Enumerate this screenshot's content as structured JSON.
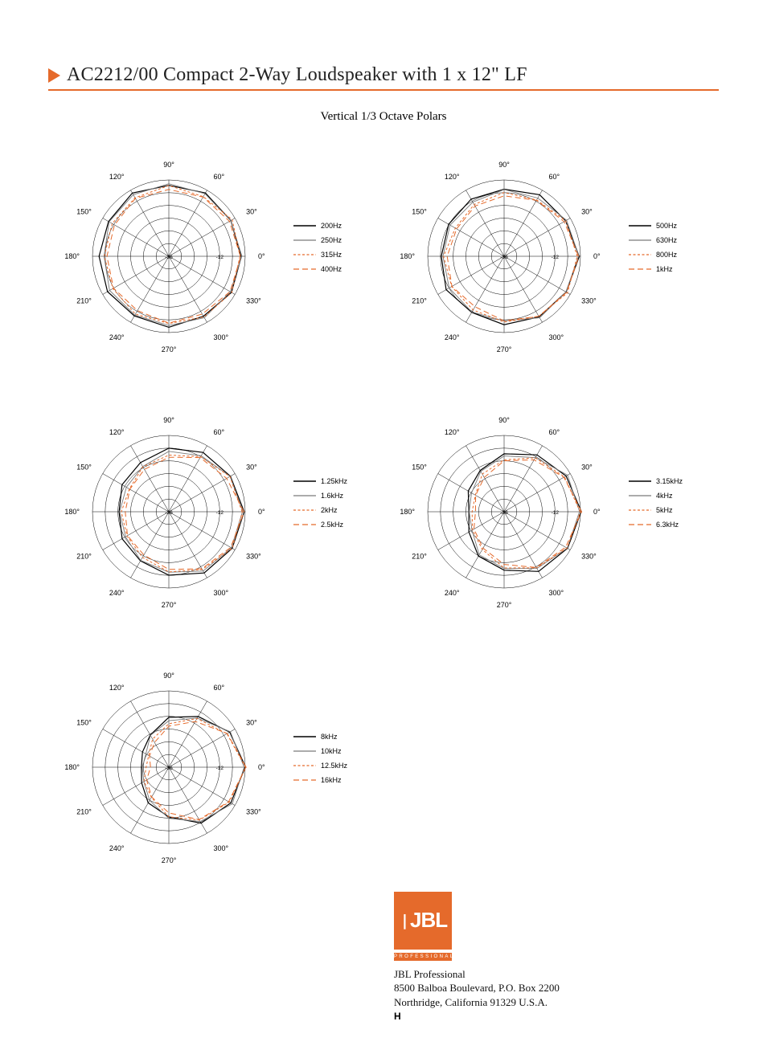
{
  "title": "AC2212/00 Compact 2-Way Loudspeaker with 1 x 12\" LF",
  "subtitle": "Vertical 1/3 Octave Polars",
  "colors": {
    "accent": "#e56a2b",
    "series1": "#000000",
    "series2": "#7a7a7a",
    "series3": "#e56a2b",
    "series4": "#e56a2b",
    "grid": "#000000",
    "bg": "#ffffff"
  },
  "polar": {
    "angle_labels": [
      "0°",
      "30°",
      "60°",
      "90°",
      "120°",
      "150°",
      "180°",
      "210°",
      "240°",
      "270°",
      "300°",
      "330°"
    ],
    "ring_values": [
      -36,
      -30,
      -24,
      -18,
      -12,
      -6,
      0
    ],
    "ring_labels_shown": [
      "-36",
      "-12"
    ],
    "r_outer": 95,
    "label_fontsize": 9,
    "ring_fontsize": 6.5
  },
  "line_styles": [
    {
      "color": "#000000",
      "dash": "",
      "width": 1.2
    },
    {
      "color": "#7a7a7a",
      "dash": "",
      "width": 0.9
    },
    {
      "color": "#e56a2b",
      "dash": "3,2.5",
      "width": 1.0
    },
    {
      "color": "#e56a2b",
      "dash": "7,4",
      "width": 1.0
    }
  ],
  "charts": [
    {
      "legend": [
        "200Hz",
        "250Hz",
        "315Hz",
        "400Hz"
      ],
      "series": [
        [
          -2,
          -2,
          -2,
          -2,
          -2,
          -3,
          -3,
          -3,
          -3,
          -3,
          -3,
          -2
        ],
        [
          -2,
          -2,
          -2,
          -2,
          -2,
          -4,
          -5,
          -4,
          -4,
          -3,
          -3,
          -2
        ],
        [
          -2,
          -2,
          -3,
          -3,
          -4,
          -5,
          -6,
          -5,
          -5,
          -4,
          -3,
          -2
        ],
        [
          -2,
          -3,
          -4,
          -4,
          -5,
          -6,
          -7,
          -6,
          -6,
          -5,
          -4,
          -3
        ]
      ]
    },
    {
      "legend": [
        "500Hz",
        "630Hz",
        "800Hz",
        "1kHz"
      ],
      "series": [
        [
          -1,
          -2,
          -3,
          -4,
          -5,
          -6,
          -6,
          -5,
          -5,
          -4,
          -3,
          -2
        ],
        [
          -1,
          -2,
          -4,
          -5,
          -6,
          -7,
          -7,
          -6,
          -6,
          -5,
          -3,
          -2
        ],
        [
          -1,
          -3,
          -5,
          -6,
          -8,
          -9,
          -8,
          -7,
          -7,
          -5,
          -3,
          -2
        ],
        [
          -1,
          -3,
          -6,
          -7,
          -9,
          -10,
          -9,
          -8,
          -8,
          -6,
          -3,
          -2
        ]
      ]
    },
    {
      "legend": [
        "1.25kHz",
        "1.6kHz",
        "2kHz",
        "2.5kHz"
      ],
      "series": [
        [
          -1,
          -2,
          -4,
          -6,
          -9,
          -11,
          -12,
          -11,
          -9,
          -6,
          -3,
          -1
        ],
        [
          -1,
          -3,
          -5,
          -8,
          -11,
          -13,
          -13,
          -12,
          -10,
          -7,
          -4,
          -2
        ],
        [
          -1,
          -3,
          -6,
          -9,
          -12,
          -14,
          -14,
          -13,
          -11,
          -8,
          -4,
          -2
        ],
        [
          -1,
          -4,
          -7,
          -10,
          -13,
          -15,
          -15,
          -14,
          -12,
          -9,
          -5,
          -2
        ]
      ]
    },
    {
      "legend": [
        "3.15kHz",
        "4kHz",
        "5kHz",
        "6.3kHz"
      ],
      "series": [
        [
          0,
          -2,
          -5,
          -9,
          -13,
          -17,
          -19,
          -17,
          -12,
          -8,
          -4,
          -1
        ],
        [
          0,
          -2,
          -6,
          -10,
          -14,
          -18,
          -20,
          -18,
          -13,
          -9,
          -5,
          -2
        ],
        [
          0,
          -3,
          -7,
          -11,
          -16,
          -20,
          -21,
          -19,
          -15,
          -10,
          -5,
          -2
        ],
        [
          0,
          -3,
          -8,
          -12,
          -17,
          -21,
          -22,
          -20,
          -16,
          -11,
          -6,
          -2
        ]
      ]
    },
    {
      "legend": [
        "8kHz",
        "10kHz",
        "12.5kHz",
        "16kHz"
      ],
      "series": [
        [
          0,
          -3,
          -8,
          -13,
          -18,
          -22,
          -23,
          -21,
          -17,
          -12,
          -6,
          -2
        ],
        [
          0,
          -3,
          -9,
          -14,
          -19,
          -23,
          -24,
          -22,
          -18,
          -12,
          -6,
          -2
        ],
        [
          0,
          -4,
          -10,
          -15,
          -21,
          -25,
          -25,
          -23,
          -19,
          -13,
          -7,
          -3
        ],
        [
          0,
          -4,
          -11,
          -17,
          -22,
          -26,
          -27,
          -24,
          -20,
          -14,
          -8,
          -3
        ]
      ]
    }
  ],
  "footer": {
    "brand": "JBL",
    "professional": "PROFESSIONAL",
    "company": "JBL Professional",
    "addr1": "8500 Balboa Boulevard, P.O. Box 2200",
    "addr2": "Northridge, California 91329 U.S.A.",
    "mark": "H"
  }
}
